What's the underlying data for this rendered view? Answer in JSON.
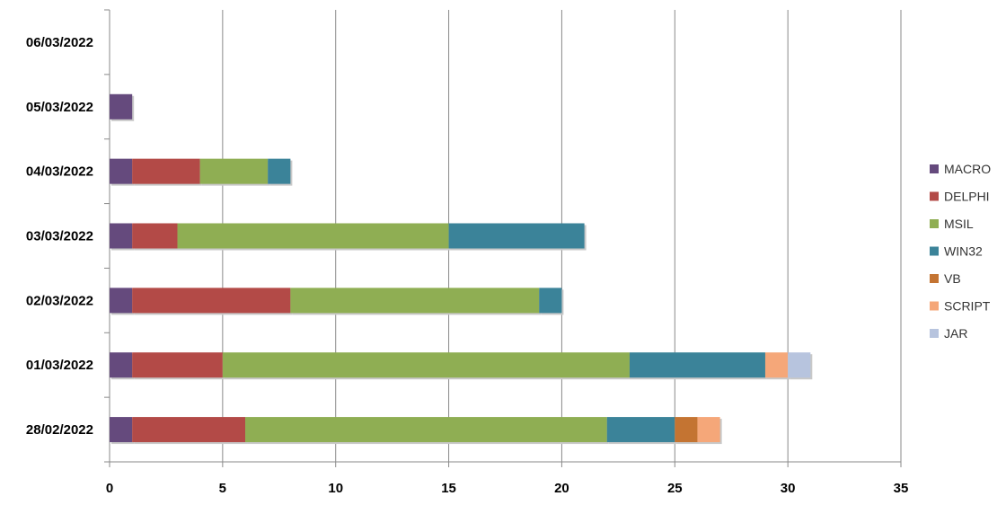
{
  "chart_data": {
    "type": "bar",
    "orientation": "horizontal",
    "stacked": true,
    "categories": [
      "06/03/2022",
      "05/03/2022",
      "04/03/2022",
      "03/03/2022",
      "02/03/2022",
      "01/03/2022",
      "28/02/2022"
    ],
    "series": [
      {
        "name": "MACRO",
        "color": "#654a7d",
        "values": [
          0,
          1,
          1,
          1,
          1,
          1,
          1
        ]
      },
      {
        "name": "DELPHI",
        "color": "#b34a47",
        "values": [
          0,
          0,
          3,
          2,
          7,
          4,
          5
        ]
      },
      {
        "name": "MSIL",
        "color": "#8fae53",
        "values": [
          0,
          0,
          3,
          12,
          11,
          18,
          16
        ]
      },
      {
        "name": "WIN32",
        "color": "#3b8399",
        "values": [
          0,
          0,
          1,
          6,
          1,
          6,
          3
        ]
      },
      {
        "name": "VB",
        "color": "#c47432",
        "values": [
          0,
          0,
          0,
          0,
          0,
          0,
          1
        ]
      },
      {
        "name": "SCRIPT",
        "color": "#f5a779",
        "values": [
          0,
          0,
          0,
          0,
          0,
          1,
          1
        ]
      },
      {
        "name": "JAR",
        "color": "#b7c4de",
        "values": [
          0,
          0,
          0,
          0,
          0,
          1,
          0
        ]
      }
    ],
    "xlim": [
      0,
      35
    ],
    "xticks": [
      0,
      5,
      10,
      15,
      20,
      25,
      30,
      35
    ],
    "grid": true,
    "legend_position": "right"
  }
}
